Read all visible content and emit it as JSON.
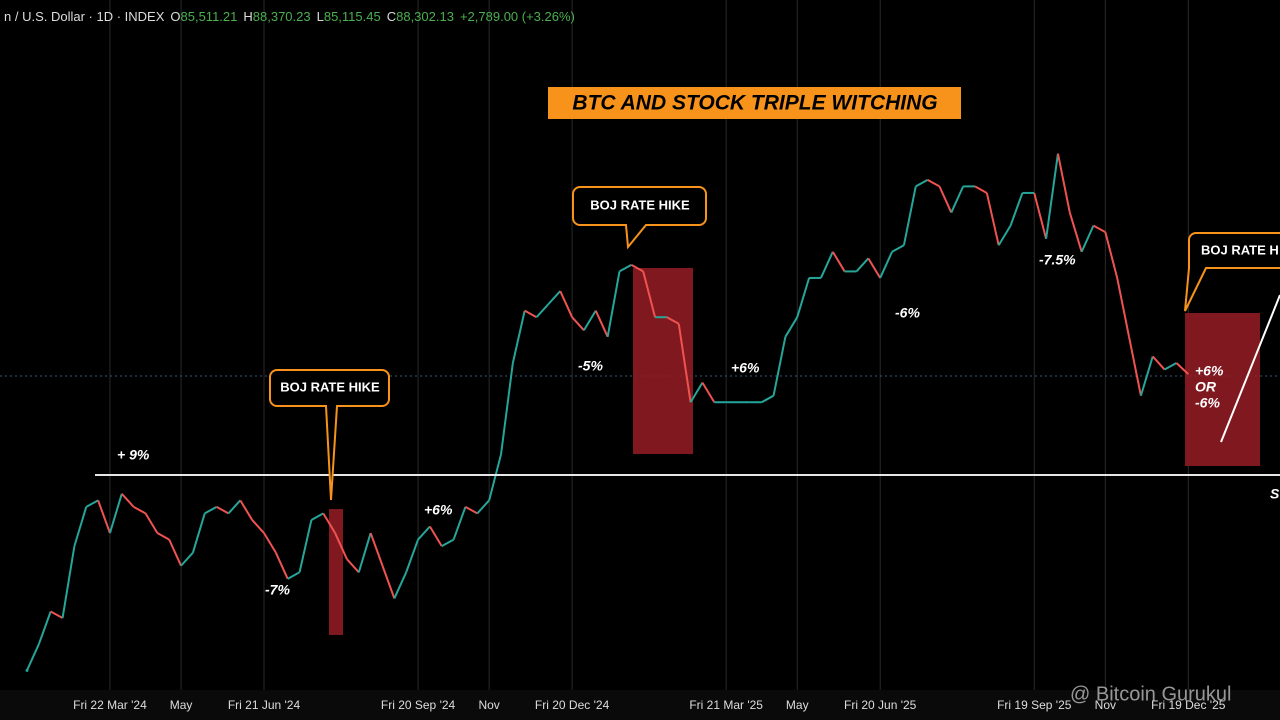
{
  "header": {
    "symbol": "n / U.S. Dollar · 1D · INDEX",
    "open_label": "O",
    "open": "85,511.21",
    "high_label": "H",
    "high": "88,370.23",
    "low_label": "L",
    "low": "85,115.45",
    "close_label": "C",
    "close": "88,302.13",
    "change": "+2,789.00 (+3.26%)"
  },
  "annotations": {
    "title": "BTC AND STOCK TRIPLE WITCHING",
    "callouts": [
      "BOJ RATE HIKE",
      "BOJ RATE HIKE",
      "BOJ RATE H"
    ],
    "moves": [
      "+ 9%",
      "-7%",
      "+6%",
      "-5%",
      "+6%",
      "-6%",
      "-7.5%"
    ],
    "outlook": [
      "+6%",
      "OR",
      "-6%"
    ],
    "edge_text": "S",
    "watermark": "@ Bitcoin Gurukul"
  },
  "chart_data": {
    "type": "line",
    "ylim": [
      40000,
      145500
    ],
    "up_color": "#26a69a",
    "down_color": "#ef5350",
    "categories": [
      null,
      null,
      null,
      null,
      null,
      null,
      null,
      "Fri 22 Mar '24",
      null,
      null,
      null,
      null,
      null,
      "May",
      null,
      null,
      null,
      null,
      null,
      null,
      "Fri 21 Jun '24",
      null,
      null,
      null,
      null,
      null,
      null,
      null,
      null,
      null,
      null,
      null,
      null,
      "Fri 20 Sep '24",
      null,
      null,
      null,
      null,
      null,
      "Nov",
      null,
      null,
      null,
      null,
      null,
      null,
      "Fri 20 Dec '24",
      null,
      null,
      null,
      null,
      null,
      null,
      null,
      null,
      null,
      null,
      null,
      null,
      "Fri 21 Mar '25",
      null,
      null,
      null,
      null,
      null,
      "May",
      null,
      null,
      null,
      null,
      null,
      null,
      "Fri 20 Jun '25",
      null,
      null,
      null,
      null,
      null,
      null,
      null,
      null,
      null,
      null,
      null,
      null,
      "Fri 19 Sep '25",
      null,
      null,
      null,
      null,
      null,
      "Nov",
      null,
      null,
      null,
      null,
      null,
      null,
      "Fri 19 Dec '25"
    ],
    "values": [
      43000,
      47000,
      52000,
      51000,
      62000,
      68000,
      69000,
      64000,
      70000,
      68000,
      67000,
      64000,
      63000,
      59000,
      61000,
      67000,
      68000,
      67000,
      69000,
      66000,
      64000,
      61000,
      57000,
      58000,
      66000,
      67000,
      64000,
      60000,
      58000,
      64000,
      59000,
      54000,
      58000,
      63000,
      65000,
      62000,
      63000,
      68000,
      67000,
      69000,
      76000,
      90000,
      98000,
      97000,
      99000,
      101000,
      97000,
      95000,
      98000,
      94000,
      104000,
      105000,
      104000,
      97000,
      97000,
      96000,
      84000,
      87000,
      84000,
      84000,
      84000,
      84000,
      84000,
      85000,
      94000,
      97000,
      103000,
      103000,
      107000,
      104000,
      104000,
      106000,
      103000,
      107000,
      108000,
      117000,
      118000,
      117000,
      113000,
      117000,
      117000,
      116000,
      108000,
      111000,
      116000,
      116000,
      109000,
      122000,
      113000,
      107000,
      111000,
      110000,
      103000,
      94000,
      85000,
      91000,
      89000,
      90000,
      88302.13
    ]
  }
}
